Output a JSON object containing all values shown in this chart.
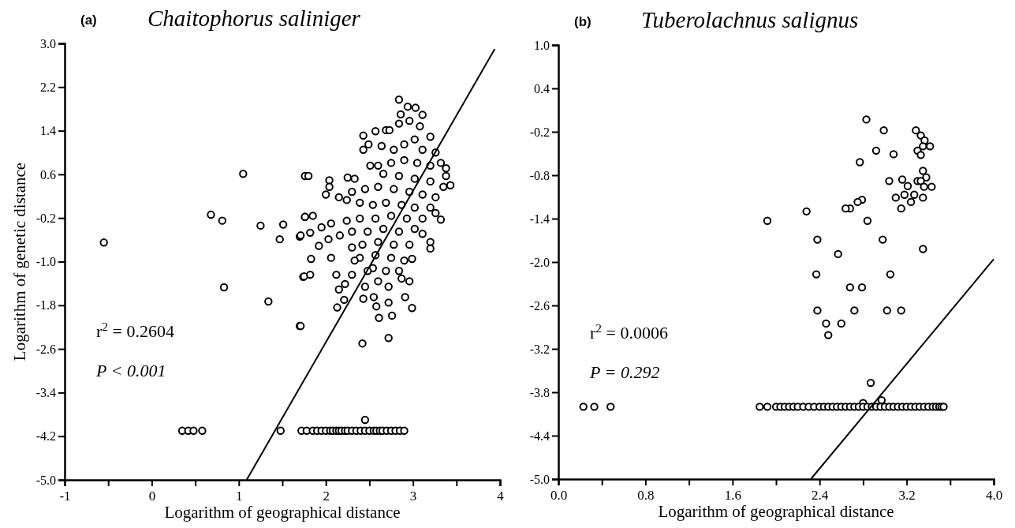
{
  "chart_data": [
    {
      "type": "scatter",
      "title": "Chaitophorus saliniger",
      "xlabel": "Logarithm of geographical distance",
      "ylabel": "Logarithm of genetic distance",
      "annotations": [
        "(a)",
        "r$^{2}$ = 0.2604",
        "P < 0.001"
      ],
      "xlim": [
        -1,
        4
      ],
      "ylim": [
        -5,
        3
      ],
      "xticks": [
        -1,
        {
          "value": -0.5,
          "label": null
        },
        0,
        {
          "value": 0.5,
          "label": null
        },
        1,
        {
          "value": 1.5,
          "label": null
        },
        2,
        {
          "value": 2.5,
          "label": null
        },
        3,
        {
          "value": 3.5,
          "label": null
        },
        4
      ],
      "yticks": [
        {
          "value": 3,
          "label": "3.0"
        },
        2.2,
        1.4,
        0.6,
        -0.2,
        {
          "value": -1,
          "label": "-1.0"
        },
        -1.8,
        -2.6,
        -3.4,
        -4.2,
        {
          "value": -5,
          "label": "-5.0"
        }
      ],
      "series": [
        {
          "type": "scatter",
          "marker": "circle",
          "color": "#000000",
          "x": [
            -0.55,
            1.05,
            0.68,
            0.81,
            1.25,
            1.51,
            1.47,
            1.7,
            0.83,
            1.34,
            1.7,
            1.76,
            1.76,
            1.74,
            2.84,
            2.94,
            3.03,
            3.11,
            2.86,
            2.43,
            2.57,
            2.69,
            2.73,
            2.43,
            2.49,
            2.64,
            1.8,
            2.04,
            2.04,
            2.0,
            2.25,
            2.33,
            2.15,
            1.76,
            1.85,
            1.71,
            1.82,
            1.95,
            2.06,
            2.16,
            1.92,
            2.03,
            1.83,
            2.06,
            1.75,
            1.82,
            2.12,
            2.22,
            2.15,
            2.3,
            2.21,
            2.13,
            1.71,
            2.43,
            2.55,
            2.58,
            2.61,
            2.76,
            2.72,
            2.91,
            2.99,
            2.42,
            2.72,
            3.32,
            3.2,
            3.2,
            2.96,
            2.45,
            3.38,
            3.43,
            3.38,
            2.84,
            2.96,
            3.08,
            3.2,
            3.02,
            2.9,
            2.78,
            3.11,
            3.26,
            3.32,
            3.2,
            3.05,
            2.9,
            2.75,
            2.6,
            2.51,
            2.66,
            2.84,
            3.02,
            3.2,
            3.35,
            3.26,
            3.11,
            2.96,
            2.78,
            2.6,
            2.45,
            2.3,
            2.24,
            2.39,
            2.54,
            2.69,
            2.87,
            3.02,
            3.2,
            3.26,
            3.11,
            2.93,
            2.75,
            2.57,
            2.39,
            2.24,
            2.3,
            2.48,
            2.66,
            2.84,
            3.02,
            3.11,
            2.96,
            2.78,
            2.6,
            2.42,
            2.3,
            2.39,
            2.57,
            2.75,
            2.9,
            2.99,
            2.54,
            2.69,
            2.84,
            2.6,
            2.72,
            2.87,
            2.48,
            2.33,
            0.35,
            0.42,
            0.48,
            0.58,
            1.48,
            1.72,
            1.78,
            1.85,
            1.9,
            1.95,
            2.0,
            2.05,
            2.08,
            2.12,
            2.15,
            2.18,
            2.22,
            2.25,
            2.3,
            2.35,
            2.4,
            2.45,
            2.5,
            2.55,
            2.58,
            2.62,
            2.65,
            2.7,
            2.75,
            2.8,
            2.85,
            2.9,
            2.45
          ],
          "values": [
            -0.65,
            0.61,
            -0.14,
            -0.25,
            -0.34,
            -0.32,
            -0.59,
            -0.54,
            -1.47,
            -1.73,
            -2.18,
            0.57,
            -0.18,
            -1.28,
            1.97,
            1.84,
            1.82,
            1.69,
            1.7,
            1.31,
            1.39,
            1.41,
            1.41,
            1.05,
            1.15,
            1.12,
            0.57,
            0.49,
            0.37,
            0.23,
            0.54,
            0.52,
            0.18,
            -0.18,
            -0.16,
            -0.52,
            -0.47,
            -0.37,
            -0.3,
            -0.52,
            -0.71,
            -0.59,
            -0.95,
            -0.93,
            -1.27,
            -1.24,
            -1.24,
            -1.41,
            -1.51,
            -1.24,
            -1.7,
            -1.84,
            -2.18,
            -1.68,
            -1.65,
            -1.82,
            -2.03,
            -1.99,
            -1.75,
            -1.65,
            -1.85,
            -2.5,
            -2.4,
            -0.23,
            -0.64,
            -0.76,
            -1.36,
            -1.46,
            0.71,
            0.4,
            0.57,
            1.53,
            1.58,
            1.48,
            1.29,
            1.24,
            1.15,
            1.05,
            1.05,
            1.0,
            0.81,
            0.76,
            0.81,
            0.86,
            0.81,
            0.76,
            0.76,
            0.61,
            0.57,
            0.52,
            0.47,
            0.37,
            0.18,
            0.23,
            0.28,
            0.33,
            0.37,
            0.33,
            0.28,
            0.13,
            0.08,
            0.04,
            0.08,
            0.04,
            -0.01,
            -0.01,
            -0.11,
            -0.21,
            -0.21,
            -0.16,
            -0.21,
            -0.21,
            -0.25,
            -0.45,
            -0.45,
            -0.4,
            -0.45,
            -0.4,
            -0.49,
            -0.69,
            -0.69,
            -0.64,
            -0.69,
            -0.74,
            -0.93,
            -0.88,
            -0.93,
            -0.98,
            -0.95,
            -1.12,
            -1.17,
            -1.17,
            -1.36,
            -1.46,
            -1.31,
            -1.17,
            -0.98,
            -4.1,
            -4.1,
            -4.1,
            -4.1,
            -4.1,
            -4.1,
            -4.1,
            -4.1,
            -4.1,
            -4.1,
            -4.1,
            -4.1,
            -4.1,
            -4.1,
            -4.1,
            -4.1,
            -4.1,
            -4.1,
            -4.1,
            -4.1,
            -4.1,
            -4.1,
            -4.1,
            -4.1,
            -4.1,
            -4.1,
            -4.1,
            -4.1,
            -4.1,
            -4.1,
            -4.1,
            -4.1,
            -3.9
          ]
        },
        {
          "type": "line",
          "color": "#000000",
          "x": [
            1.09,
            3.94
          ],
          "values": [
            -5,
            2.9
          ]
        }
      ]
    },
    {
      "type": "scatter",
      "title": "Tuberolachnus salignus",
      "xlabel": "Logarithm of geographical distance",
      "annotations": [
        "(b)",
        "r$^{2}$ = 0.0006",
        "P = 0.292"
      ],
      "xlim": [
        0,
        4
      ],
      "ylim": [
        -5,
        1
      ],
      "xticks": [
        {
          "value": 0,
          "label": "0.0"
        },
        {
          "value": 0.4,
          "label": null
        },
        0.8,
        {
          "value": 1.2,
          "label": null
        },
        1.6,
        {
          "value": 2,
          "label": null
        },
        2.4,
        {
          "value": 2.8,
          "label": null
        },
        3.2,
        {
          "value": 3.6,
          "label": null
        },
        {
          "value": 4,
          "label": "4.0"
        }
      ],
      "yticks": [
        {
          "value": 1,
          "label": "1.0"
        },
        0.4,
        -0.2,
        -0.8,
        -1.4,
        {
          "value": -2,
          "label": "-2.0"
        },
        -2.6,
        -3.2,
        -3.8,
        -4.4,
        {
          "value": -5,
          "label": "-5.0"
        }
      ],
      "series": [
        {
          "type": "scatter",
          "marker": "circle",
          "color": "#000000",
          "x": [
            2.83,
            2.99,
            3.285,
            3.33,
            3.365,
            3.35,
            3.415,
            3.3,
            3.33,
            2.92,
            3.08,
            2.77,
            3.35,
            3.38,
            3.16,
            3.3,
            3.33,
            3.04,
            3.21,
            3.36,
            3.43,
            3.18,
            3.27,
            3.1,
            3.35,
            3.24,
            3.15,
            2.79,
            2.75,
            2.68,
            2.64,
            2.28,
            1.92,
            2.84,
            2.38,
            2.98,
            3.35,
            2.57,
            2.37,
            3.05,
            2.68,
            2.79,
            2.38,
            2.72,
            3.02,
            3.15,
            2.46,
            2.6,
            2.48,
            2.87,
            2.97,
            2.8,
            0.23,
            0.33,
            0.48,
            1.85,
            1.92,
            2.0,
            2.04,
            2.08,
            2.12,
            2.16,
            2.2,
            2.25,
            2.3,
            2.35,
            2.4,
            2.44,
            2.48,
            2.52,
            2.56,
            2.6,
            2.64,
            2.68,
            2.72,
            2.76,
            2.8,
            2.84,
            2.88,
            2.92,
            2.96,
            3.0,
            3.04,
            3.08,
            3.12,
            3.16,
            3.2,
            3.24,
            3.28,
            3.32,
            3.36,
            3.4,
            3.44,
            3.47,
            3.5,
            3.52,
            3.54
          ],
          "values": [
            -0.03,
            -0.18,
            -0.18,
            -0.25,
            -0.32,
            -0.4,
            -0.4,
            -0.46,
            -0.52,
            -0.46,
            -0.51,
            -0.62,
            -0.74,
            -0.83,
            -0.86,
            -0.88,
            -0.88,
            -0.88,
            -0.95,
            -0.96,
            -0.96,
            -1.07,
            -1.07,
            -1.11,
            -1.11,
            -1.17,
            -1.26,
            -1.14,
            -1.17,
            -1.26,
            -1.26,
            -1.3,
            -1.43,
            -1.43,
            -1.69,
            -1.69,
            -1.82,
            -1.89,
            -2.17,
            -2.17,
            -2.35,
            -2.35,
            -2.67,
            -2.67,
            -2.67,
            -2.67,
            -2.85,
            -2.85,
            -3.01,
            -3.67,
            -3.91,
            -3.95,
            -4.0,
            -4.0,
            -4.0,
            -4.0,
            -4.0,
            -4.0,
            -4.0,
            -4.0,
            -4.0,
            -4.0,
            -4.0,
            -4.0,
            -4.0,
            -4.0,
            -4.0,
            -4.0,
            -4.0,
            -4.0,
            -4.0,
            -4.0,
            -4.0,
            -4.0,
            -4.0,
            -4.0,
            -4.0,
            -4.0,
            -4.0,
            -4.0,
            -4.0,
            -4.0,
            -4.0,
            -4.0,
            -4.0,
            -4.0,
            -4.0,
            -4.0,
            -4.0,
            -4.0,
            -4.0,
            -4.0,
            -4.0,
            -4.0,
            -4.0,
            -4.0,
            -4.0
          ]
        },
        {
          "type": "line",
          "color": "#000000",
          "x": [
            2.32,
            4.0
          ],
          "values": [
            -5,
            -1.96
          ]
        }
      ]
    }
  ]
}
